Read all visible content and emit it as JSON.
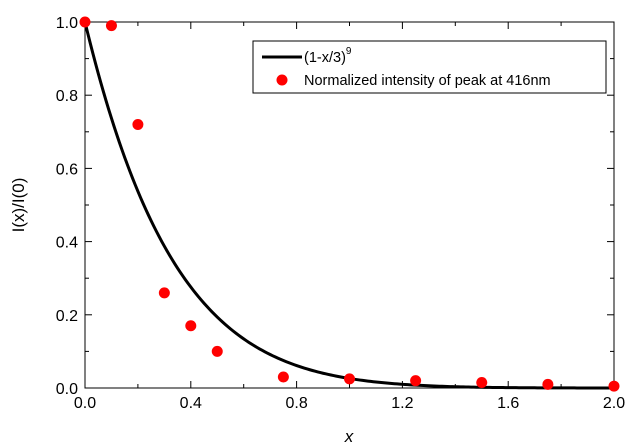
{
  "chart_data": {
    "type": "scatter",
    "xlabel": "x",
    "ylabel": "I(x)/I(0)",
    "xlim": [
      0.0,
      2.0
    ],
    "ylim": [
      0.0,
      1.0
    ],
    "x_ticks": [
      "0.0",
      "0.4",
      "0.8",
      "1.2",
      "1.6",
      "2.0"
    ],
    "y_ticks": [
      "0.0",
      "0.2",
      "0.4",
      "0.6",
      "0.8",
      "1.0"
    ],
    "grid": false,
    "legend_position": "top-right",
    "series": [
      {
        "name": "(1-x/3)",
        "name_superscript": "9",
        "kind": "line",
        "formula": "(1-x/3)^9",
        "color": "#000000"
      },
      {
        "name": "Normalized intensity of peak at 416nm",
        "kind": "scatter",
        "color": "#ff0000",
        "x": [
          0.0,
          0.1,
          0.2,
          0.3,
          0.4,
          0.5,
          0.75,
          1.0,
          1.25,
          1.5,
          1.75,
          2.0
        ],
        "y": [
          1.0,
          0.99,
          0.72,
          0.26,
          0.17,
          0.1,
          0.03,
          0.025,
          0.02,
          0.015,
          0.01,
          0.005
        ]
      }
    ]
  }
}
